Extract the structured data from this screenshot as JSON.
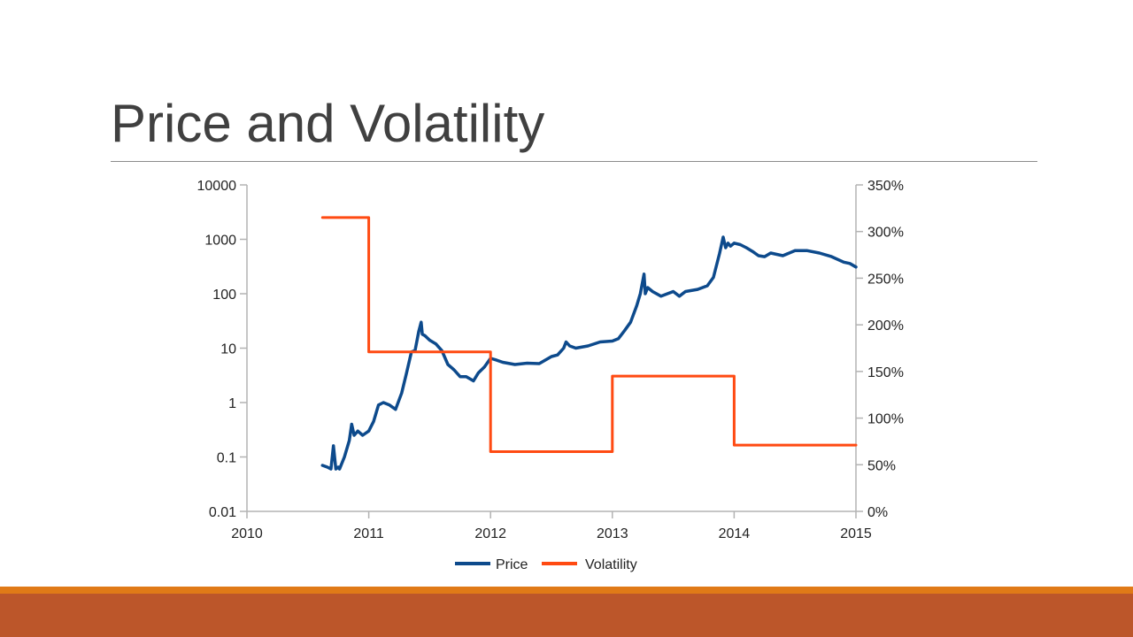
{
  "slide": {
    "title": "Price and Volatility",
    "colors": {
      "title": "#404040",
      "band_top": "#e07a17",
      "band_bottom": "#bc562a"
    }
  },
  "chart_data": {
    "type": "line",
    "title": "",
    "xlabel": "",
    "ylabel": "",
    "x_ticks": [
      "2010",
      "2011",
      "2012",
      "2013",
      "2014",
      "2015"
    ],
    "xlim": [
      2010,
      2015
    ],
    "y_left": {
      "scale": "log",
      "ylim": [
        0.01,
        10000
      ],
      "ticks": [
        "0.01",
        "0.1",
        "1",
        "10",
        "100",
        "1000",
        "10000"
      ]
    },
    "y_right": {
      "scale": "linear",
      "ylim": [
        0,
        350
      ],
      "ticks": [
        "0%",
        "50%",
        "100%",
        "150%",
        "200%",
        "250%",
        "300%",
        "350%"
      ]
    },
    "grid": false,
    "legend_position": "bottom",
    "series": [
      {
        "name": "Price",
        "axis": "left",
        "color": "#0d4a8c",
        "x": [
          2010.62,
          2010.66,
          2010.69,
          2010.71,
          2010.73,
          2010.75,
          2010.76,
          2010.8,
          2010.84,
          2010.86,
          2010.88,
          2010.91,
          2010.95,
          2011.0,
          2011.04,
          2011.08,
          2011.12,
          2011.17,
          2011.22,
          2011.27,
          2011.31,
          2011.35,
          2011.38,
          2011.41,
          2011.43,
          2011.44,
          2011.46,
          2011.5,
          2011.55,
          2011.6,
          2011.65,
          2011.7,
          2011.75,
          2011.8,
          2011.86,
          2011.9,
          2011.95,
          2012.0,
          2012.05,
          2012.1,
          2012.2,
          2012.3,
          2012.4,
          2012.5,
          2012.55,
          2012.6,
          2012.62,
          2012.65,
          2012.7,
          2012.8,
          2012.9,
          2013.0,
          2013.05,
          2013.1,
          2013.15,
          2013.2,
          2013.23,
          2013.26,
          2013.27,
          2013.29,
          2013.33,
          2013.4,
          2013.5,
          2013.55,
          2013.6,
          2013.7,
          2013.78,
          2013.83,
          2013.88,
          2013.91,
          2013.93,
          2013.95,
          2013.97,
          2014.0,
          2014.05,
          2014.1,
          2014.15,
          2014.2,
          2014.25,
          2014.3,
          2014.4,
          2014.5,
          2014.6,
          2014.7,
          2014.8,
          2014.9,
          2014.95,
          2015.0
        ],
        "values": [
          0.07,
          0.065,
          0.06,
          0.16,
          0.06,
          0.065,
          0.06,
          0.1,
          0.2,
          0.4,
          0.25,
          0.3,
          0.25,
          0.3,
          0.45,
          0.9,
          1.0,
          0.9,
          0.75,
          1.5,
          3.5,
          8.5,
          9,
          20,
          30,
          18,
          17,
          14,
          12,
          9,
          5,
          4,
          3,
          3,
          2.5,
          3.5,
          4.5,
          6.5,
          6,
          5.5,
          5,
          5.3,
          5.2,
          7,
          7.5,
          10,
          13,
          11,
          10,
          11,
          13,
          13.5,
          15,
          21,
          30,
          60,
          100,
          230,
          100,
          130,
          110,
          90,
          110,
          90,
          110,
          120,
          140,
          200,
          550,
          1100,
          700,
          850,
          750,
          850,
          800,
          700,
          600,
          500,
          480,
          560,
          500,
          620,
          620,
          560,
          480,
          380,
          360,
          310
        ]
      },
      {
        "name": "Volatility",
        "axis": "right",
        "color": "#ff4a12",
        "x": [
          2010.62,
          2011.0,
          2011.0,
          2012.0,
          2012.0,
          2013.0,
          2013.0,
          2014.0,
          2014.0,
          2015.0
        ],
        "values": [
          315,
          315,
          171,
          171,
          64,
          64,
          145,
          145,
          71,
          71
        ]
      }
    ]
  }
}
